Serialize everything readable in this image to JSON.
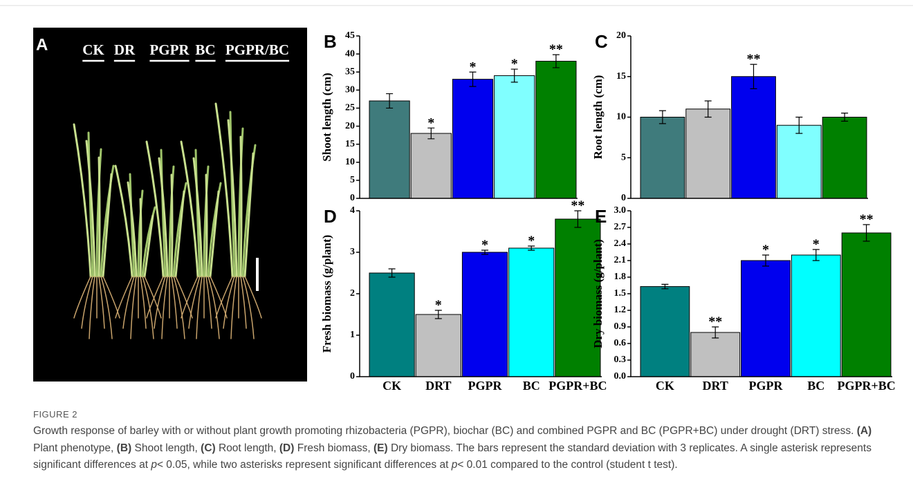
{
  "photo": {
    "panel": "A",
    "labels": [
      "CK",
      "DR",
      "PGPR",
      "BC",
      "PGPR/BC"
    ]
  },
  "chart_data": [
    {
      "type": "bar",
      "panel": "B",
      "ylabel": "Shoot length (cm)",
      "categories": [
        null,
        null,
        null,
        null,
        null
      ],
      "values": [
        27,
        18,
        33,
        34,
        38
      ],
      "errors": [
        2,
        1.5,
        2,
        1.8,
        1.8
      ],
      "annotations": [
        null,
        "*",
        "*",
        "*",
        "**"
      ],
      "colors": [
        "#3f7b7c",
        "#c0c0c0",
        "#0000ee",
        "#80ffff",
        "#008000"
      ],
      "ylim": [
        0,
        45
      ],
      "yticks": [
        0,
        5,
        10,
        15,
        20,
        25,
        30,
        35,
        40,
        45
      ]
    },
    {
      "type": "bar",
      "panel": "C",
      "ylabel": "Root length (cm)",
      "categories": [
        null,
        null,
        null,
        null,
        null
      ],
      "values": [
        10,
        11,
        15,
        9,
        10
      ],
      "errors": [
        0.8,
        1,
        1.5,
        1,
        0.5
      ],
      "annotations": [
        null,
        null,
        "**",
        null,
        null
      ],
      "colors": [
        "#3f7b7c",
        "#c0c0c0",
        "#0000ee",
        "#80ffff",
        "#008000"
      ],
      "ylim": [
        0,
        20
      ],
      "yticks": [
        0,
        5,
        10,
        15,
        20
      ]
    },
    {
      "type": "bar",
      "panel": "D",
      "ylabel": "Fresh biomass (g/plant)",
      "categories": [
        "CK",
        "DRT",
        "PGPR",
        "BC",
        "PGPR+BC"
      ],
      "values": [
        2.5,
        1.5,
        3,
        3.1,
        3.8
      ],
      "errors": [
        0.1,
        0.1,
        0.05,
        0.05,
        0.2
      ],
      "annotations": [
        null,
        "*",
        "*",
        "*",
        "**"
      ],
      "colors": [
        "#008080",
        "#c0c0c0",
        "#0000ee",
        "#00ffff",
        "#008000"
      ],
      "ylim": [
        0,
        4
      ],
      "yticks": [
        0,
        1,
        2,
        3,
        4
      ]
    },
    {
      "type": "bar",
      "panel": "E",
      "ylabel": "Dry biomass (g/plant)",
      "categories": [
        "CK",
        "DRT",
        "PGPR",
        "BC",
        "PGPR+BC"
      ],
      "values": [
        1.63,
        0.8,
        2.1,
        2.2,
        2.6
      ],
      "errors": [
        0.04,
        0.1,
        0.1,
        0.1,
        0.15
      ],
      "annotations": [
        null,
        "**",
        "*",
        "*",
        "**"
      ],
      "colors": [
        "#008080",
        "#c0c0c0",
        "#0000ee",
        "#00ffff",
        "#008000"
      ],
      "ylim": [
        0,
        3
      ],
      "yticks": [
        {
          "value": 0,
          "label": "0.0"
        },
        0.3,
        0.6,
        0.9,
        1.2,
        1.5,
        1.8,
        2.1,
        2.4,
        2.7,
        {
          "value": 3,
          "label": "3.0"
        }
      ]
    }
  ],
  "figure": {
    "label": "FIGURE 2",
    "caption": [
      {
        "text": "Growth response of barley with or without plant growth promoting rhizobacteria (PGPR), biochar (BC) and combined PGPR and BC (PGPR+BC) under drought (DRT) stress. "
      },
      {
        "text": "(A)",
        "style": "bold"
      },
      {
        "text": " Plant phenotype, "
      },
      {
        "text": "(B)",
        "style": "bold"
      },
      {
        "text": " Shoot length, "
      },
      {
        "text": "(C)",
        "style": "bold"
      },
      {
        "text": " Root length, "
      },
      {
        "text": "(D)",
        "style": "bold"
      },
      {
        "text": " Fresh biomass, "
      },
      {
        "text": "(E)",
        "style": "bold"
      },
      {
        "text": " Dry biomass. The bars represent the standard deviation with 3 replicates. A single asterisk represents significant differences at "
      },
      {
        "text": "p",
        "style": "italic"
      },
      {
        "text": "< 0.05, while two asterisks represent significant differences at "
      },
      {
        "text": "p",
        "style": "italic"
      },
      {
        "text": "< 0.01 compared to the control (student t test)."
      }
    ]
  }
}
